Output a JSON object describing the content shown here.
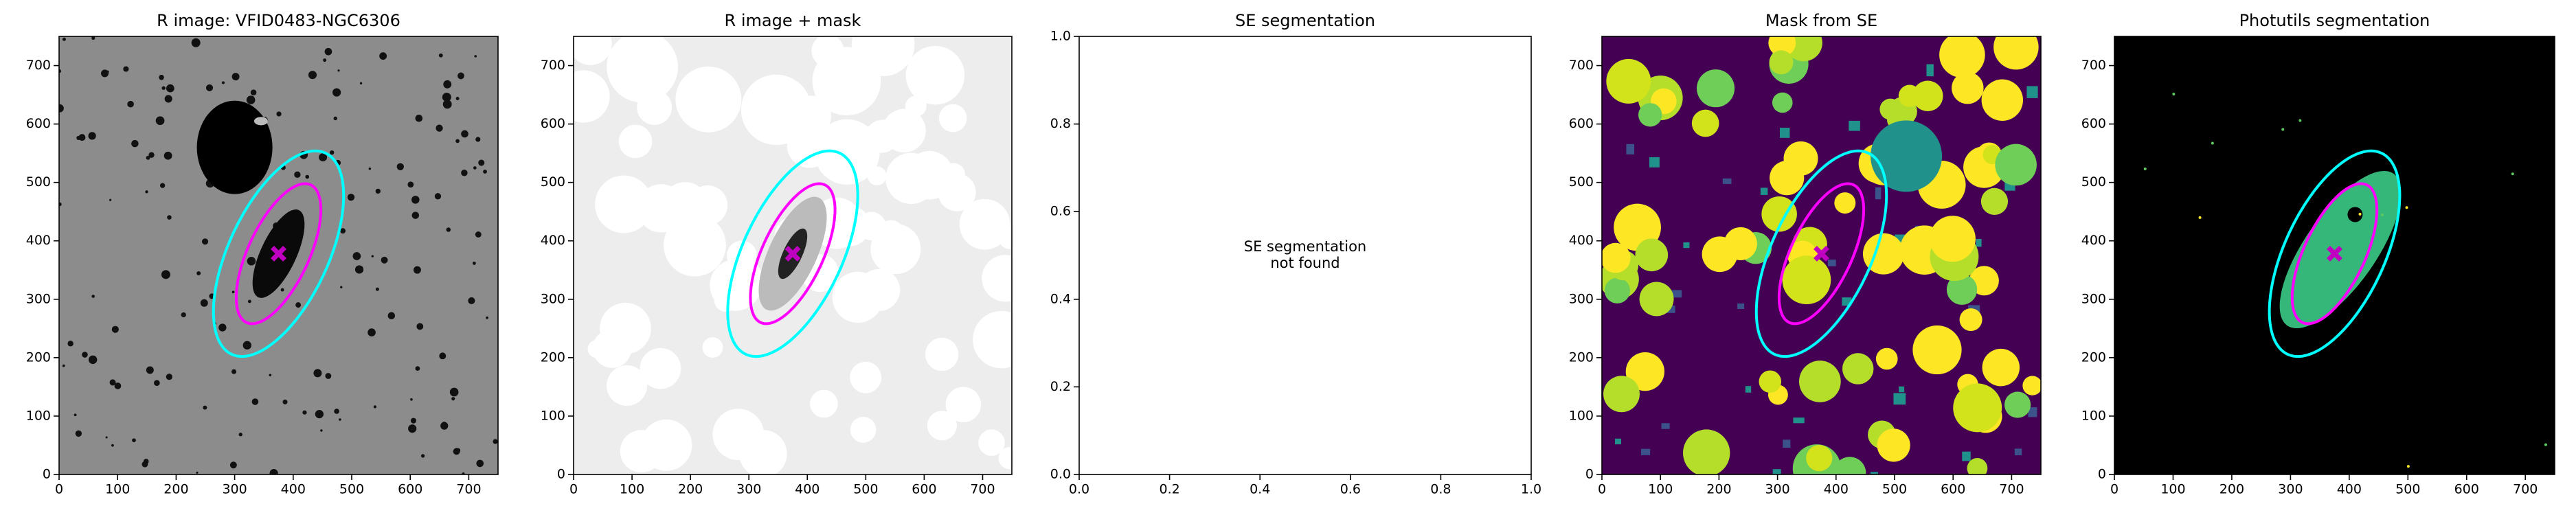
{
  "chart_data": [
    {
      "type": "image",
      "title": "R image: VFID0483-NGC6306",
      "xlim": [
        0,
        750
      ],
      "ylim": [
        0,
        750
      ],
      "xticks": [
        0,
        100,
        200,
        300,
        400,
        500,
        600,
        700
      ],
      "yticks": [
        0,
        100,
        200,
        300,
        400,
        500,
        600,
        700
      ],
      "ellipses": [
        {
          "color": "#00ffff",
          "center": [
            375,
            378
          ],
          "rx": 85,
          "ry": 190,
          "angle": 25
        },
        {
          "color": "#ff00ff",
          "center": [
            375,
            378
          ],
          "rx": 52,
          "ry": 130,
          "angle": 25
        }
      ],
      "marker": {
        "x": 375,
        "y": 378,
        "color": "#c000c0"
      }
    },
    {
      "type": "image",
      "title": "R image + mask",
      "xlim": [
        0,
        750
      ],
      "ylim": [
        0,
        750
      ],
      "xticks": [
        0,
        100,
        200,
        300,
        400,
        500,
        600,
        700
      ],
      "yticks": [
        0,
        100,
        200,
        300,
        400,
        500,
        600,
        700
      ],
      "ellipses": [
        {
          "color": "#00ffff",
          "center": [
            375,
            378
          ],
          "rx": 85,
          "ry": 190,
          "angle": 25
        },
        {
          "color": "#ff00ff",
          "center": [
            375,
            378
          ],
          "rx": 52,
          "ry": 130,
          "angle": 25
        }
      ],
      "marker": {
        "x": 375,
        "y": 378,
        "color": "#c000c0"
      }
    },
    {
      "type": "blank",
      "title": "SE segmentation",
      "xlim": [
        0,
        1
      ],
      "ylim": [
        0,
        1
      ],
      "xticks": [
        {
          "value": 0,
          "label": "0.0"
        },
        {
          "value": 0.2,
          "label": "0.2"
        },
        {
          "value": 0.4,
          "label": "0.4"
        },
        {
          "value": 0.6,
          "label": "0.6"
        },
        {
          "value": 0.8,
          "label": "0.8"
        },
        {
          "value": 1,
          "label": "1.0"
        }
      ],
      "yticks": [
        {
          "value": 0,
          "label": "0.0"
        },
        {
          "value": 0.2,
          "label": "0.2"
        },
        {
          "value": 0.4,
          "label": "0.4"
        },
        {
          "value": 0.6,
          "label": "0.6"
        },
        {
          "value": 0.8,
          "label": "0.8"
        },
        {
          "value": 1,
          "label": "1.0"
        }
      ],
      "annotation": [
        "SE segmentation",
        "not found"
      ]
    },
    {
      "type": "image",
      "title": "Mask from SE",
      "xlim": [
        0,
        750
      ],
      "ylim": [
        0,
        750
      ],
      "xticks": [
        0,
        100,
        200,
        300,
        400,
        500,
        600,
        700
      ],
      "yticks": [
        0,
        100,
        200,
        300,
        400,
        500,
        600,
        700
      ],
      "ellipses": [
        {
          "color": "#00ffff",
          "center": [
            375,
            378
          ],
          "rx": 85,
          "ry": 190,
          "angle": 25
        },
        {
          "color": "#ff00ff",
          "center": [
            375,
            378
          ],
          "rx": 52,
          "ry": 130,
          "angle": 25
        }
      ],
      "marker": {
        "x": 375,
        "y": 378,
        "color": "#c000c0"
      }
    },
    {
      "type": "image",
      "title": "Photutils segmentation",
      "xlim": [
        0,
        750
      ],
      "ylim": [
        0,
        750
      ],
      "xticks": [
        0,
        100,
        200,
        300,
        400,
        500,
        600,
        700
      ],
      "yticks": [
        0,
        100,
        200,
        300,
        400,
        500,
        600,
        700
      ],
      "ellipses": [
        {
          "color": "#00ffff",
          "center": [
            375,
            378
          ],
          "rx": 85,
          "ry": 190,
          "angle": 25
        },
        {
          "color": "#ff00ff",
          "center": [
            375,
            378
          ],
          "rx": 52,
          "ry": 130,
          "angle": 25
        }
      ],
      "marker": {
        "x": 375,
        "y": 378,
        "color": "#c000c0"
      }
    }
  ]
}
